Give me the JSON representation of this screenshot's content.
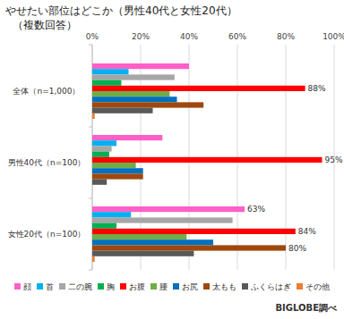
{
  "chart_data": {
    "type": "bar",
    "orientation": "horizontal",
    "title": "やせたい部位はどこか（男性40代と女性20代）",
    "subtitle": "（複数回答）",
    "source": "BIGLOBE調べ",
    "categories": [
      "全体（n=1,000）",
      "男性40代（n=100）",
      "女性20代（n=100）"
    ],
    "xlim": [
      0,
      100
    ],
    "xticks": [
      {
        "value": 0,
        "label": "0%"
      },
      {
        "value": 20,
        "label": "20%"
      },
      {
        "value": 40,
        "label": "40%"
      },
      {
        "value": 60,
        "label": "60%"
      },
      {
        "value": 80,
        "label": "80%"
      },
      {
        "value": 100,
        "label": "100%"
      }
    ],
    "grid": true,
    "legend": "bottom",
    "data_labels": true,
    "series": [
      {
        "name": "顔",
        "color": "#ff5fc8",
        "values": [
          40,
          29,
          63
        ],
        "value_labels": [
          null,
          null,
          "63%"
        ]
      },
      {
        "name": "首",
        "color": "#00b0f0",
        "values": [
          15,
          10,
          16
        ]
      },
      {
        "name": "二の腕",
        "color": "#a6a6a6",
        "values": [
          34,
          8,
          58
        ]
      },
      {
        "name": "胸",
        "color": "#00b050",
        "values": [
          12,
          7,
          10
        ]
      },
      {
        "name": "お腹",
        "color": "#ff0000",
        "values": [
          88,
          95,
          84
        ],
        "value_labels": [
          "88%",
          "95%",
          "84%"
        ]
      },
      {
        "name": "腰",
        "color": "#70ad47",
        "values": [
          32,
          18,
          39
        ]
      },
      {
        "name": "お尻",
        "color": "#0070c0",
        "values": [
          35,
          21,
          50
        ]
      },
      {
        "name": "太もも",
        "color": "#9e480e",
        "values": [
          46,
          21,
          80
        ],
        "value_labels": [
          null,
          null,
          "80%"
        ]
      },
      {
        "name": "ふくらはぎ",
        "color": "#595959",
        "values": [
          25,
          6,
          42
        ]
      },
      {
        "name": "その他",
        "color": "#ed7d31",
        "values": [
          1,
          0,
          1
        ]
      }
    ]
  }
}
